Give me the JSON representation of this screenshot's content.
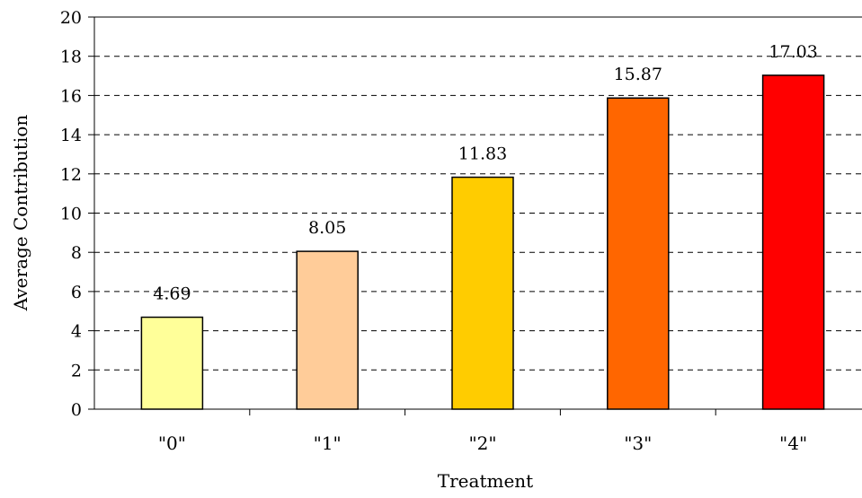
{
  "chart_data": {
    "type": "bar",
    "categories": [
      "\"0\"",
      "\"1\"",
      "\"2\"",
      "\"3\"",
      "\"4\""
    ],
    "values": [
      4.69,
      8.05,
      11.83,
      15.87,
      17.03
    ],
    "data_labels": [
      "4.69",
      "8.05",
      "11.83",
      "15.87",
      "17.03"
    ],
    "bar_colors": [
      "#FFFF99",
      "#FFCC99",
      "#FFCC00",
      "#FF6600",
      "#FF0000"
    ],
    "xlabel": "Treatment",
    "ylabel": "Average Contribution",
    "ylim": [
      0,
      20
    ],
    "yticks": [
      0,
      2,
      4,
      6,
      8,
      10,
      12,
      14,
      16,
      18,
      20
    ],
    "grid": "horizontal dashed",
    "legend": "none"
  }
}
